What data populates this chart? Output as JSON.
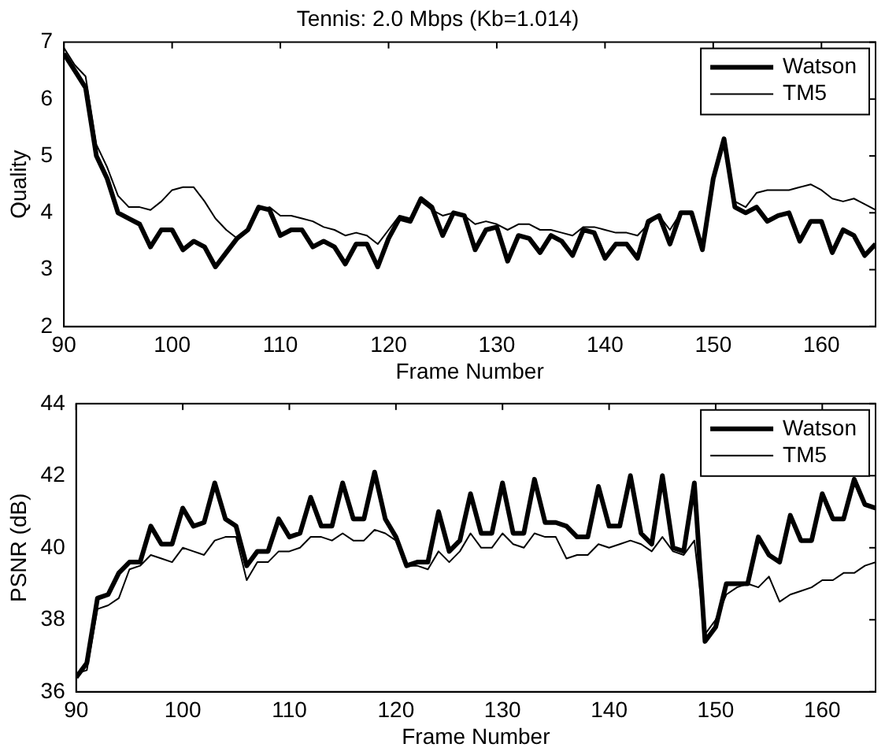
{
  "chart_data": [
    {
      "type": "line",
      "title": "Tennis: 2.0 Mbps (Kb=1.014)",
      "xlabel": "Frame Number",
      "ylabel": "Quality",
      "xlim": [
        90,
        165
      ],
      "xticks": [
        90,
        100,
        110,
        120,
        130,
        140,
        150,
        160
      ],
      "ylim": [
        2,
        7
      ],
      "yticks": [
        2,
        3,
        4,
        5,
        6,
        7
      ],
      "grid": false,
      "legend": "top right",
      "marker": "none",
      "x": [
        90,
        91,
        92,
        93,
        94,
        95,
        96,
        97,
        98,
        99,
        100,
        101,
        102,
        103,
        104,
        105,
        106,
        107,
        108,
        109,
        110,
        111,
        112,
        113,
        114,
        115,
        116,
        117,
        118,
        119,
        120,
        121,
        122,
        123,
        124,
        125,
        126,
        127,
        128,
        129,
        130,
        131,
        132,
        133,
        134,
        135,
        136,
        137,
        138,
        139,
        140,
        141,
        142,
        143,
        144,
        145,
        146,
        147,
        148,
        149,
        150,
        151,
        152,
        153,
        154,
        155,
        156,
        157,
        158,
        159,
        160,
        161,
        162,
        163,
        164,
        165
      ],
      "series": [
        {
          "name": "Watson",
          "color": "#000000",
          "values": [
            6.8,
            6.5,
            6.2,
            5.0,
            4.6,
            4.0,
            3.9,
            3.8,
            3.4,
            3.7,
            3.7,
            3.35,
            3.5,
            3.4,
            3.05,
            3.3,
            3.55,
            3.7,
            4.1,
            4.05,
            3.6,
            3.7,
            3.7,
            3.4,
            3.5,
            3.4,
            3.1,
            3.45,
            3.45,
            3.05,
            3.55,
            3.9,
            3.85,
            4.25,
            4.1,
            3.6,
            4.0,
            3.95,
            3.35,
            3.7,
            3.75,
            3.15,
            3.6,
            3.55,
            3.3,
            3.6,
            3.5,
            3.25,
            3.7,
            3.65,
            3.2,
            3.45,
            3.45,
            3.2,
            3.85,
            3.95,
            3.45,
            4.0,
            4.0,
            3.35,
            4.6,
            5.3,
            4.1,
            4.0,
            4.1,
            3.85,
            3.95,
            4.0,
            3.5,
            3.85,
            3.85,
            3.3,
            3.7,
            3.6,
            3.25,
            3.45
          ]
        },
        {
          "name": "TM5",
          "color": "#000000",
          "values": [
            6.9,
            6.6,
            6.4,
            5.2,
            4.8,
            4.3,
            4.1,
            4.1,
            4.05,
            4.2,
            4.4,
            4.45,
            4.45,
            4.2,
            3.9,
            3.7,
            3.55,
            3.7,
            4.05,
            4.1,
            3.95,
            3.95,
            3.9,
            3.85,
            3.75,
            3.7,
            3.6,
            3.65,
            3.6,
            3.45,
            3.7,
            3.95,
            3.9,
            4.2,
            4.05,
            3.95,
            4.0,
            3.95,
            3.8,
            3.85,
            3.8,
            3.7,
            3.8,
            3.8,
            3.7,
            3.7,
            3.65,
            3.6,
            3.75,
            3.75,
            3.7,
            3.65,
            3.65,
            3.6,
            3.8,
            3.95,
            3.7,
            4.0,
            4.0,
            3.4,
            4.6,
            5.25,
            4.2,
            4.1,
            4.35,
            4.4,
            4.4,
            4.4,
            4.45,
            4.5,
            4.4,
            4.25,
            4.2,
            4.25,
            4.15,
            4.05
          ]
        }
      ]
    },
    {
      "type": "line",
      "xlabel": "Frame Number",
      "ylabel": "PSNR (dB)",
      "xlim": [
        90,
        165
      ],
      "xticks": [
        90,
        100,
        110,
        120,
        130,
        140,
        150,
        160
      ],
      "ylim": [
        36,
        44
      ],
      "yticks": [
        36,
        38,
        40,
        42,
        44
      ],
      "grid": false,
      "legend": "top right",
      "marker": "none",
      "x": [
        90,
        91,
        92,
        93,
        94,
        95,
        96,
        97,
        98,
        99,
        100,
        101,
        102,
        103,
        104,
        105,
        106,
        107,
        108,
        109,
        110,
        111,
        112,
        113,
        114,
        115,
        116,
        117,
        118,
        119,
        120,
        121,
        122,
        123,
        124,
        125,
        126,
        127,
        128,
        129,
        130,
        131,
        132,
        133,
        134,
        135,
        136,
        137,
        138,
        139,
        140,
        141,
        142,
        143,
        144,
        145,
        146,
        147,
        148,
        149,
        150,
        151,
        152,
        153,
        154,
        155,
        156,
        157,
        158,
        159,
        160,
        161,
        162,
        163,
        164,
        165
      ],
      "series": [
        {
          "name": "Watson",
          "color": "#000000",
          "values": [
            36.4,
            36.8,
            38.6,
            38.7,
            39.3,
            39.6,
            39.6,
            40.6,
            40.1,
            40.1,
            41.1,
            40.6,
            40.7,
            41.8,
            40.8,
            40.6,
            39.5,
            39.9,
            39.9,
            40.8,
            40.3,
            40.4,
            41.4,
            40.6,
            40.6,
            41.8,
            40.8,
            40.8,
            42.1,
            40.8,
            40.3,
            39.5,
            39.6,
            39.6,
            41.0,
            39.9,
            40.2,
            41.5,
            40.4,
            40.4,
            41.8,
            40.4,
            40.4,
            41.9,
            40.7,
            40.7,
            40.6,
            40.3,
            40.3,
            41.7,
            40.6,
            40.6,
            42.0,
            40.4,
            40.1,
            42.0,
            40.0,
            39.9,
            41.8,
            37.4,
            37.8,
            39.0,
            39.0,
            39.0,
            40.3,
            39.8,
            39.6,
            40.9,
            40.2,
            40.2,
            41.5,
            40.8,
            40.8,
            41.9,
            41.2,
            41.1
          ]
        },
        {
          "name": "TM5",
          "color": "#000000",
          "values": [
            36.5,
            36.6,
            38.3,
            38.4,
            38.6,
            39.4,
            39.5,
            39.8,
            39.7,
            39.6,
            40.0,
            39.9,
            39.8,
            40.2,
            40.3,
            40.3,
            39.1,
            39.6,
            39.6,
            39.9,
            39.9,
            40.0,
            40.3,
            40.3,
            40.2,
            40.4,
            40.2,
            40.2,
            40.5,
            40.4,
            40.2,
            39.5,
            39.5,
            39.4,
            39.9,
            39.6,
            39.9,
            40.4,
            40.0,
            40.0,
            40.4,
            40.1,
            40.0,
            40.4,
            40.3,
            40.3,
            39.7,
            39.8,
            39.8,
            40.1,
            40.0,
            40.1,
            40.2,
            40.1,
            39.9,
            40.3,
            39.9,
            39.8,
            40.2,
            37.6,
            38.0,
            38.7,
            38.9,
            39.0,
            38.9,
            39.2,
            38.5,
            38.7,
            38.8,
            38.9,
            39.1,
            39.1,
            39.3,
            39.3,
            39.5,
            39.6
          ]
        }
      ]
    }
  ]
}
